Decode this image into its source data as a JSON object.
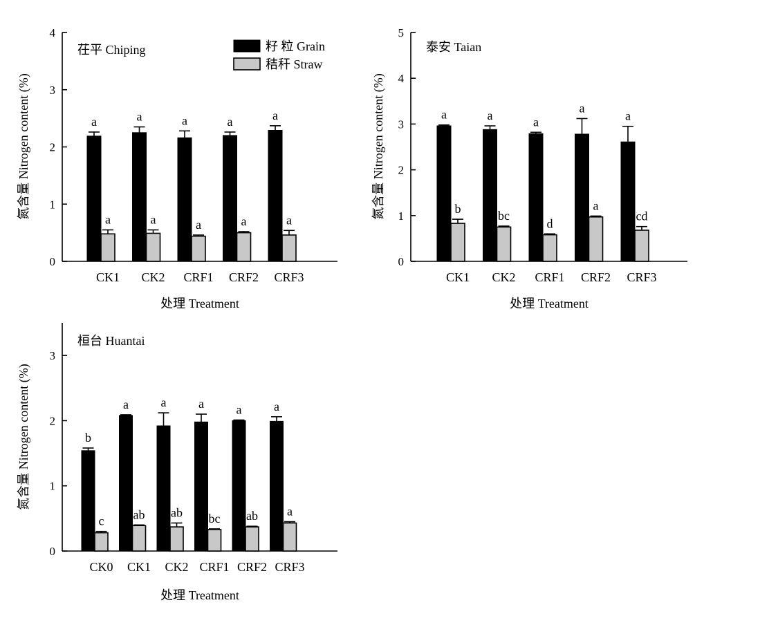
{
  "legend": {
    "grain_label": "籽 粒 Grain",
    "straw_label": "秸秆 Straw",
    "grain_color": "#000000",
    "straw_color": "#c8c8c8"
  },
  "chart_data": [
    {
      "type": "bar",
      "panel_label": "茌平 Chiping",
      "xlabel": "处理 Treatment",
      "ylabel": "氮含量 Nitrogen content (%)",
      "ylim": [
        0,
        4
      ],
      "yticks": [
        0,
        1,
        2,
        3,
        4
      ],
      "categories": [
        "CK1",
        "CK2",
        "CRF1",
        "CRF2",
        "CRF3"
      ],
      "legend_shown": true,
      "series": [
        {
          "name": "籽 粒 Grain",
          "values": [
            2.19,
            2.25,
            2.16,
            2.2,
            2.29
          ],
          "errors": [
            0.07,
            0.1,
            0.12,
            0.06,
            0.08
          ],
          "letters": [
            "a",
            "a",
            "a",
            "a",
            "a"
          ]
        },
        {
          "name": "秸秆 Straw",
          "values": [
            0.48,
            0.49,
            0.44,
            0.5,
            0.46
          ],
          "errors": [
            0.07,
            0.06,
            0.02,
            0.02,
            0.08
          ],
          "letters": [
            "a",
            "a",
            "a",
            "a",
            "a"
          ]
        }
      ]
    },
    {
      "type": "bar",
      "panel_label": "泰安 Taian",
      "xlabel": "处理 Treatment",
      "ylabel": "氮含量 Nitrogen content (%)",
      "ylim": [
        0,
        5
      ],
      "yticks": [
        0,
        1,
        2,
        3,
        4,
        5
      ],
      "categories": [
        "CK1",
        "CK2",
        "CRF1",
        "CRF2",
        "CRF3"
      ],
      "legend_shown": false,
      "series": [
        {
          "name": "籽 粒 Grain",
          "values": [
            2.96,
            2.88,
            2.79,
            2.78,
            2.61
          ],
          "errors": [
            0.02,
            0.08,
            0.03,
            0.34,
            0.34
          ],
          "letters": [
            "a",
            "a",
            "a",
            "a",
            "a"
          ]
        },
        {
          "name": "秸秆 Straw",
          "values": [
            0.83,
            0.75,
            0.58,
            0.97,
            0.68
          ],
          "errors": [
            0.09,
            0.02,
            0.02,
            0.02,
            0.08
          ],
          "letters": [
            "b",
            "bc",
            "d",
            "a",
            "cd"
          ]
        }
      ]
    },
    {
      "type": "bar",
      "panel_label": "桓台 Huantai",
      "xlabel": "处理 Treatment",
      "ylabel": "氮含量 Nitrogen content (%)",
      "ylim": [
        0,
        3.5
      ],
      "yticks": [
        0,
        1,
        2,
        3
      ],
      "categories": [
        "CK0",
        "CK1",
        "CK2",
        "CRF1",
        "CRF2",
        "CRF3"
      ],
      "legend_shown": false,
      "series": [
        {
          "name": "籽 粒 Grain",
          "values": [
            1.54,
            2.08,
            1.92,
            1.98,
            2.0,
            1.99
          ],
          "errors": [
            0.04,
            0.01,
            0.2,
            0.12,
            0.01,
            0.07
          ],
          "letters": [
            "b",
            "a",
            "a",
            "a",
            "a",
            "a"
          ]
        },
        {
          "name": "秸秆 Straw",
          "values": [
            0.28,
            0.39,
            0.37,
            0.33,
            0.37,
            0.43
          ],
          "errors": [
            0.02,
            0.01,
            0.06,
            0.01,
            0.01,
            0.02
          ],
          "letters": [
            "c",
            "ab",
            "ab",
            "bc",
            "ab",
            "a"
          ]
        }
      ]
    }
  ]
}
